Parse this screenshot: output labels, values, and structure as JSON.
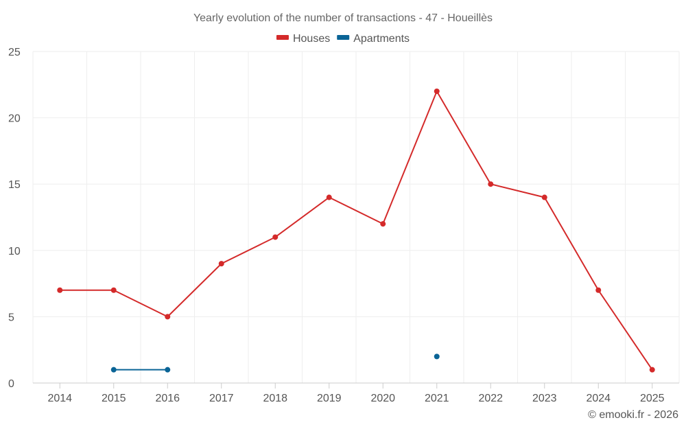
{
  "chart_data": {
    "type": "line",
    "title": "Yearly evolution of the number of transactions - 47 - Houeillès",
    "categories": [
      "2014",
      "2015",
      "2016",
      "2017",
      "2018",
      "2019",
      "2020",
      "2021",
      "2022",
      "2023",
      "2024",
      "2025"
    ],
    "ylim": [
      0,
      25
    ],
    "yticks": [
      0,
      5,
      10,
      15,
      20,
      25
    ],
    "series": [
      {
        "name": "Houses",
        "color": "#d42a2a",
        "values": [
          7,
          7,
          5,
          9,
          11,
          14,
          12,
          22,
          15,
          14,
          7,
          1
        ]
      },
      {
        "name": "Apartments",
        "color": "#0a6496",
        "values": [
          null,
          1,
          1,
          null,
          null,
          null,
          null,
          2,
          null,
          null,
          null,
          null
        ]
      }
    ],
    "xlabel": "",
    "ylabel": "",
    "legend_position": "top-center",
    "grid": true
  },
  "credit": "© emooki.fr - 2026"
}
